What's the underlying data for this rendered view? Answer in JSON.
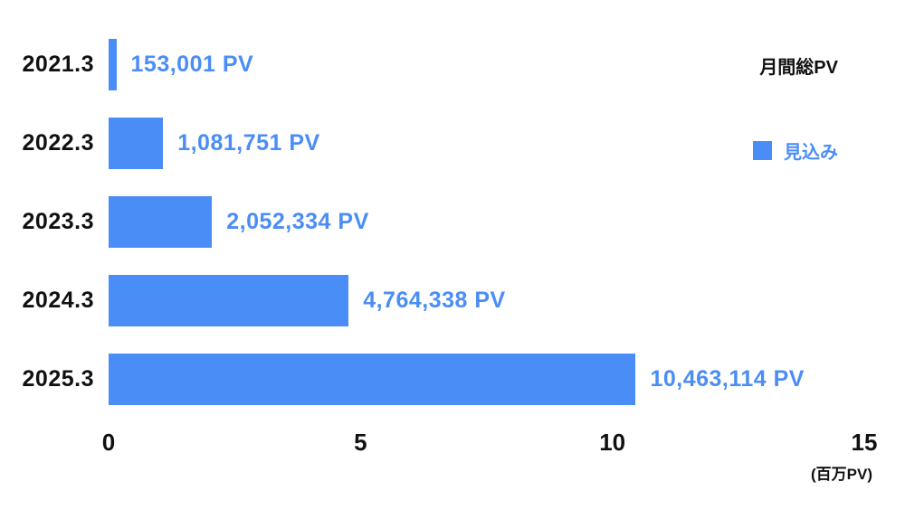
{
  "chart_data": {
    "type": "bar",
    "orientation": "horizontal",
    "title": "月間総PV",
    "categories": [
      "2021.3",
      "2022.3",
      "2023.3",
      "2024.3",
      "2025.3"
    ],
    "values": [
      0.153001,
      1.081751,
      2.052334,
      4.764338,
      10.463114
    ],
    "value_labels": [
      "153,001 PV",
      "1,081,751 PV",
      "2,052,334 PV",
      "4,764,338 PV",
      "10,463,114 PV"
    ],
    "xlabel": "(百万PV)",
    "xlim": [
      0,
      15
    ],
    "xticks": [
      0,
      5,
      10,
      15
    ],
    "grid": false,
    "legend_position": "top-right",
    "legend": [
      {
        "label": "見込み",
        "color": "#4b8df6"
      }
    ],
    "bar_color": "#4b8df6"
  }
}
